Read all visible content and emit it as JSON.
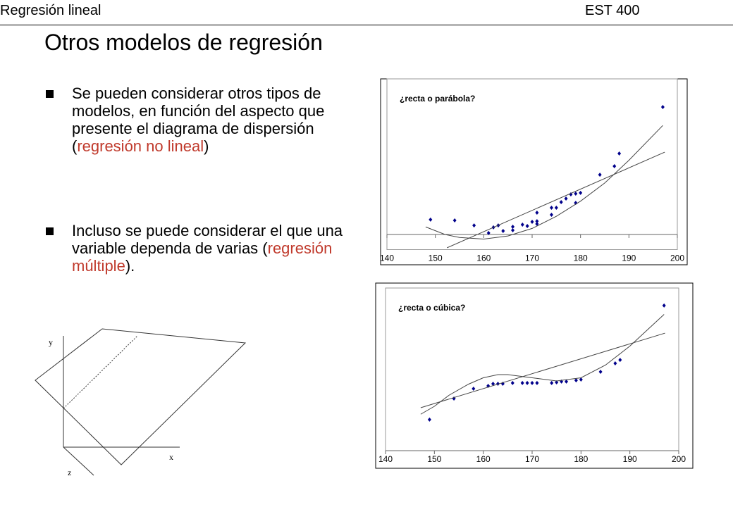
{
  "header": {
    "left": "Regresión lineal",
    "right": "EST 400"
  },
  "title": "Otros modelos de regresión",
  "bullets": [
    {
      "parts": [
        "Se pueden considerar otros tipos de modelos, en función del aspecto que presente el diagrama de dispersión (",
        "regresión no lineal",
        ")"
      ]
    },
    {
      "parts": [
        "Incluso se puede considerar el que una variable dependa de varias (",
        "regresión múltiple",
        ")."
      ]
    }
  ],
  "diagram": {
    "labels": [
      "y",
      "x",
      "z"
    ]
  },
  "chart_data": [
    {
      "type": "scatter",
      "title": "¿recta o parábola?",
      "xlim": [
        140,
        200
      ],
      "xticks": [
        140,
        150,
        160,
        170,
        180,
        190,
        200
      ],
      "ylim": [
        -10,
        100
      ],
      "series": [
        {
          "kind": "points",
          "color": "#00008b",
          "x": [
            149,
            154,
            158,
            161,
            162,
            163,
            164,
            166,
            166,
            168,
            169,
            170,
            171,
            171,
            171,
            174,
            174,
            175,
            176,
            177,
            178,
            179,
            179,
            180,
            184,
            187,
            188,
            197
          ],
          "values": [
            9.8,
            9.3,
            6,
            1,
            4.7,
            6,
            2.3,
            5.1,
            2.8,
            6.5,
            5.6,
            8.4,
            8.8,
            7,
            14.4,
            13,
            17.7,
            17.7,
            21.4,
            23.7,
            26.5,
            20.9,
            27,
            27.5,
            39.5,
            45.1,
            53.5,
            84.2
          ]
        },
        {
          "kind": "line",
          "color": "#444444",
          "x": [
            152.4,
            197.4
          ],
          "values": [
            -8.8,
            54.4
          ]
        },
        {
          "kind": "line",
          "color": "#444444",
          "x": [
            148,
            152,
            155,
            160,
            165,
            170,
            175,
            180,
            185,
            190,
            197
          ],
          "values": [
            5,
            0,
            -2,
            -3,
            -1,
            4,
            12,
            22,
            34,
            49,
            72
          ]
        }
      ]
    },
    {
      "type": "scatter",
      "title": "¿recta o cúbica?",
      "xlim": [
        140,
        200
      ],
      "xticks": [
        140,
        150,
        160,
        170,
        180,
        190,
        200
      ],
      "ylim": [
        0,
        100
      ],
      "series": [
        {
          "kind": "points",
          "color": "#00008b",
          "x": [
            149,
            154,
            158,
            161,
            162,
            163,
            164,
            166,
            168,
            169,
            170,
            171,
            174,
            175,
            176,
            177,
            179,
            180,
            184,
            187,
            188,
            197
          ],
          "values": [
            19.6,
            32.9,
            39.1,
            40.9,
            42.2,
            42.2,
            42.2,
            42.7,
            42.7,
            42.7,
            42.7,
            42.7,
            42.7,
            43.1,
            43.6,
            43.6,
            44.4,
            44.9,
            49.8,
            55.1,
            57.3,
            91.6
          ]
        },
        {
          "kind": "line",
          "color": "#444444",
          "x": [
            147.2,
            197.2
          ],
          "values": [
            27.1,
            74.2
          ]
        },
        {
          "kind": "line",
          "color": "#444444",
          "x": [
            147.2,
            150,
            153,
            157,
            160,
            163,
            165,
            170,
            175,
            180,
            185,
            190,
            197
          ],
          "values": [
            23,
            28,
            35,
            42,
            46,
            48,
            48,
            46,
            44,
            46,
            54,
            66,
            86
          ]
        }
      ]
    }
  ]
}
